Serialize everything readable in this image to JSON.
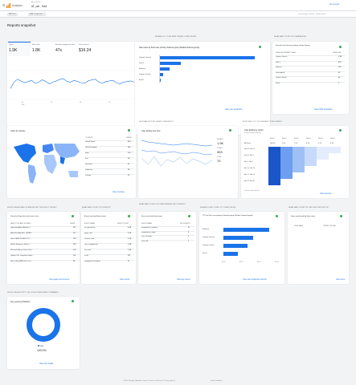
{
  "header": {
    "app": "Analytics",
    "account": "All accounts >",
    "property": "AT_net - GA4",
    "report_link": "Go to report"
  },
  "filters": {
    "all_users": "All Users",
    "comparison": "Add comparison +",
    "date_range": "Last 90 days   20 Feb - 20 Mar 2024"
  },
  "page": {
    "title": "Reports snapshot"
  },
  "overview": {
    "metrics": [
      {
        "label": "Users",
        "value": "1.9K"
      },
      {
        "label": "New users",
        "value": "1.8K"
      },
      {
        "label": "Average engagement time",
        "value": "47s"
      },
      {
        "label": "Total revenue",
        "value": "$16.24"
      }
    ],
    "x_labels": [
      "04",
      "11",
      "18",
      "25",
      "01"
    ],
    "x_month": "Mar",
    "y_labels": [
      "100",
      "50",
      "0"
    ]
  },
  "new_users": {
    "section": "WHERE DO YOUR NEW USERS COME FROM?",
    "card_title": "New users by First user primary channel group (Default channel group)",
    "bars": [
      {
        "label": "Organic Search",
        "value": 1420
      },
      {
        "label": "Direct",
        "value": 320
      },
      {
        "label": "Referral",
        "value": 150
      },
      {
        "label": "Organic Social",
        "value": 60
      },
      {
        "label": "Email",
        "value": 20
      }
    ],
    "link": "View user acquisition"
  },
  "campaigns": {
    "section": "WHAT ARE YOUR TOP CAMPAIGNS?",
    "card_title": "Sessions by Session primary channel group",
    "col1": "SESSION PRIMARY CHAN...",
    "col2": "SESSIONS",
    "rows": [
      {
        "name": "Organic Search",
        "value": "2.4K"
      },
      {
        "name": "Direct",
        "value": "426"
      },
      {
        "name": "Referral",
        "value": "150"
      },
      {
        "name": "Unassigned",
        "value": "62"
      },
      {
        "name": "Organic Social",
        "value": "40"
      },
      {
        "name": "Email",
        "value": "3"
      }
    ],
    "link": "View traffic acquisition"
  },
  "countries": {
    "card_title": "Users by Country",
    "col1": "COUNTRY",
    "col2": "USERS",
    "rows": [
      {
        "name": "United States",
        "value": "820"
      },
      {
        "name": "United Kingdom",
        "value": "240"
      },
      {
        "name": "India",
        "value": "150"
      },
      {
        "name": "Iran",
        "value": "60"
      },
      {
        "name": "Germany",
        "value": "45"
      },
      {
        "name": "Indonesia",
        "value": "38"
      },
      {
        "name": "Canada",
        "value": "30"
      }
    ],
    "link": "View countries"
  },
  "active": {
    "section": "HOW ARE ACTIVE USERS TRENDING?",
    "card_title": "User activity over time",
    "legend": [
      {
        "label": "30 DAYS",
        "value": "1.9K"
      },
      {
        "label": "7 DAYS",
        "value": "353"
      },
      {
        "label": "1 DAY",
        "value": "70"
      }
    ]
  },
  "retention": {
    "section": "HOW WELL DO YOU RETAIN YOUR USERS?",
    "card_title": "User activity by cohort",
    "subtitle": "Based on device data only",
    "cols": [
      "Week 0",
      "Week 1",
      "Week 2",
      "Week 3",
      "Week 4",
      "Week 5"
    ],
    "all_users": "All Users",
    "all_values": [
      "100.0%",
      "2.6%",
      "1.5%",
      "0.7%",
      "0.7%",
      "0.3%"
    ],
    "cohorts": [
      "Feb 18 - Feb 24",
      "Feb 25 - Mar 2",
      "Mar 3 - Mar 9",
      "Mar 10 - Mar 16",
      "Mar 17 - Mar 23",
      "Mar 24 - Mar 30"
    ],
    "footer": "6 weeks ending Mar 30",
    "link": "View retention"
  },
  "pages": {
    "section": "WHICH PAGES AND SCREENS GET THE MOST VIEWS?",
    "card_title": "Views by Page title and screen class",
    "col1": "PAGE TITLE AND SCREEN ...",
    "col2": "VIEWS",
    "rows": [
      {
        "name": "Upgrading Apple Airdrop o...",
        "value": "812"
      },
      {
        "name": "AltLinkTestBtg.NET - ATNET...",
        "value": "217"
      },
      {
        "name": "How to Add Cloudflare Te...",
        "value": "210"
      },
      {
        "name": "Bitcoin Signature: How to...",
        "value": "184"
      },
      {
        "name": "Microsoft Native Cache: Rea...",
        "value": "124"
      },
      {
        "name": "Update iOS: Complete Guide...",
        "value": "101"
      },
      {
        "name": "How to Buy BNB with a Cre...",
        "value": "85"
      }
    ],
    "link": "View pages and screens"
  },
  "events": {
    "section": "WHAT ARE YOUR TOP EVENTS?",
    "card_title": "Event count by Event name",
    "col1": "EVENT NAME",
    "col2": "EVENT COUNT",
    "rows": [
      {
        "name": "ad_impression",
        "value": "8.4K"
      },
      {
        "name": "page_view",
        "value": "2.6K"
      },
      {
        "name": "session_start",
        "value": "2.1K"
      },
      {
        "name": "user_engagement",
        "value": "1.8K"
      },
      {
        "name": "first_visit",
        "value": "1.8K"
      },
      {
        "name": "scroll",
        "value": "521"
      },
      {
        "name": "engagement_loading...",
        "value": "47"
      }
    ],
    "link": "View events"
  },
  "key_events": {
    "section": "WHAT ARE YOUR TOP PERFORMING KEY EVENTS?",
    "card_title": "Key events by Event name",
    "col1": "EVENT NAME",
    "col2": "KEY EVENTS",
    "rows": [
      {
        "name": "engagement_loading...",
        "value": "47"
      },
      {
        "name": "engagement_page...",
        "value": "8"
      },
      {
        "name": "user_d-shape",
        "value": "3"
      },
      {
        "name": "mail_ad2",
        "value": "1"
      }
    ],
    "link": "View key events"
  },
  "ltv": {
    "section": "WHERE DOES YOUR LTV COME FROM?",
    "card_title": "LTV for First user primary channel group (Default channel group)",
    "bars": [
      {
        "label": "Referral",
        "value": 5.2
      },
      {
        "label": "Organic Search",
        "value": 3.4
      },
      {
        "label": "Organic Social",
        "value": 2.7
      },
      {
        "label": "Direct",
        "value": 1.6
      }
    ],
    "ticks": [
      "$0.00",
      "$2.00",
      "$4.00",
      "$6.00"
    ],
    "link": "View user acquisition cohorts"
  },
  "items": {
    "section": "WHAT ARE YOUR TOP SELLING PRODUCTS?",
    "card_title": "Items purchased by Item name",
    "col1": "ITEM NAME",
    "col2": "ITEMS PURCHA...",
    "link": "View items"
  },
  "platform": {
    "section": "HOW DOES ACTIVITY ON YOUR PLATFORMS COMPARE?",
    "card_title": "Key events by Platform",
    "legend": "WEB",
    "value": "100.0%",
    "link": "View tech details"
  },
  "footer": {
    "text": "©2024 Google | Analytics home | Terms of Service | Privacy policy |",
    "feedback": "Send feedback"
  },
  "colors": {
    "accent": "#1a73e8",
    "green": "#34a853"
  }
}
